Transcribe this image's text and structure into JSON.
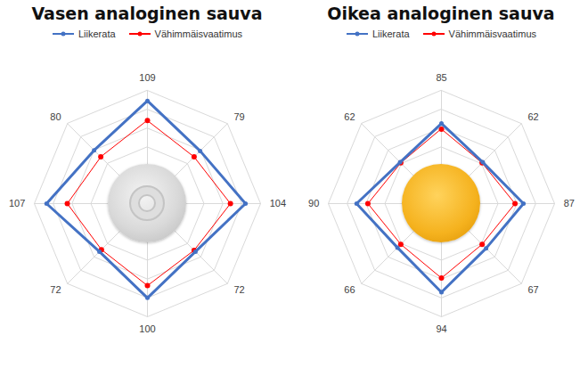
{
  "chart_data": [
    {
      "type": "radar",
      "title": "Vasen analoginen sauva",
      "categories": [
        null,
        null,
        null,
        null,
        null,
        null,
        null,
        null
      ],
      "series": [
        {
          "name": "Liikerata",
          "color": "#4472c4",
          "marker": "circle",
          "data_labels": true,
          "values": [
            109,
            79,
            104,
            72,
            100,
            72,
            107,
            80
          ]
        },
        {
          "name": "Vähimmäisvaatimus",
          "color": "#ff0000",
          "marker": "circle",
          "values": [
            88,
            70,
            88,
            70,
            87,
            69,
            85,
            70
          ]
        }
      ],
      "ylim": [
        0,
        120
      ],
      "yticks": [
        0,
        20,
        40,
        60,
        80,
        100,
        120
      ],
      "grid": true,
      "tick_labels": false,
      "legend": "top"
    },
    {
      "type": "radar",
      "title": "Oikea analoginen sauva",
      "categories": [
        null,
        null,
        null,
        null,
        null,
        null,
        null,
        null
      ],
      "series": [
        {
          "name": "Liikerata",
          "color": "#4472c4",
          "marker": "circle",
          "data_labels": true,
          "values": [
            85,
            62,
            87,
            67,
            94,
            66,
            90,
            62
          ]
        },
        {
          "name": "Vähimmäisvaatimus",
          "color": "#ff0000",
          "marker": "circle",
          "values": [
            79,
            61,
            78,
            61,
            79,
            61,
            78,
            61
          ]
        }
      ],
      "ylim": [
        0,
        120
      ],
      "yticks": [
        0,
        20,
        40,
        60,
        80,
        100,
        120
      ],
      "grid": true,
      "tick_labels": false,
      "legend": "top"
    }
  ]
}
